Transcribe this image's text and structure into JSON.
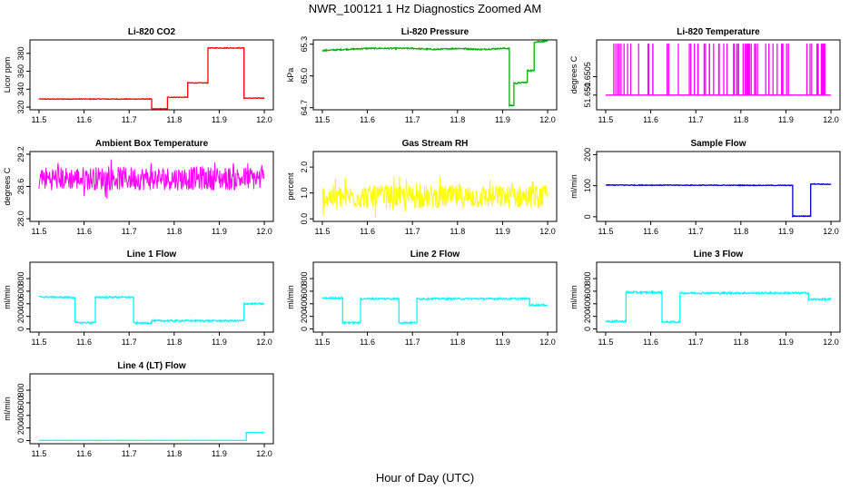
{
  "page": {
    "title": "NWR_100121  1 Hz Diagnostics Zoomed AM",
    "xlabel": "Hour of Day (UTC)"
  },
  "chart_data": [
    {
      "type": "line",
      "title": "Li-820 CO2",
      "ylabel": "Licor ppm",
      "color": "#ff0000",
      "xlim": [
        11.48,
        12.02
      ],
      "ylim": [
        317,
        395
      ],
      "x_ticks": [
        "11.5",
        "11.6",
        "11.7",
        "11.8",
        "11.9",
        "12.0"
      ],
      "y_ticks": [
        "320",
        "340",
        "360",
        "380"
      ],
      "style": "step",
      "noise": 0.4,
      "points": [
        [
          11.5,
          329
        ],
        [
          11.75,
          329
        ],
        [
          11.75,
          318
        ],
        [
          11.785,
          318
        ],
        [
          11.785,
          331
        ],
        [
          11.83,
          331
        ],
        [
          11.83,
          347
        ],
        [
          11.875,
          347
        ],
        [
          11.875,
          386
        ],
        [
          11.955,
          386
        ],
        [
          11.955,
          330
        ],
        [
          12.0,
          330
        ]
      ]
    },
    {
      "type": "line",
      "title": "Li-820 Pressure",
      "ylabel": "kPa",
      "color": "#00b000",
      "xlim": [
        11.48,
        12.02
      ],
      "ylim": [
        64.68,
        65.34
      ],
      "x_ticks": [
        "11.5",
        "11.6",
        "11.7",
        "11.8",
        "11.9",
        "12.0"
      ],
      "y_ticks": [
        "64.7",
        "65.0",
        "65.3"
      ],
      "style": "step",
      "noise": 0.006,
      "points": [
        [
          11.5,
          65.24
        ],
        [
          11.55,
          65.25
        ],
        [
          11.6,
          65.26
        ],
        [
          11.65,
          65.26
        ],
        [
          11.7,
          65.26
        ],
        [
          11.75,
          65.25
        ],
        [
          11.8,
          65.26
        ],
        [
          11.85,
          65.25
        ],
        [
          11.9,
          65.26
        ],
        [
          11.915,
          65.26
        ],
        [
          11.915,
          64.72
        ],
        [
          11.925,
          64.72
        ],
        [
          11.925,
          64.93
        ],
        [
          11.955,
          64.94
        ],
        [
          11.955,
          65.05
        ],
        [
          11.97,
          65.05
        ],
        [
          11.97,
          65.32
        ],
        [
          12.0,
          65.33
        ]
      ]
    },
    {
      "type": "line",
      "title": "Li-820 Temperature",
      "ylabel": "degrees C",
      "color": "#ff00ff",
      "xlim": [
        11.48,
        12.02
      ],
      "ylim": [
        51.6496,
        51.6515
      ],
      "x_ticks": [
        "11.5",
        "11.6",
        "11.7",
        "11.8",
        "11.9",
        "12.0"
      ],
      "y_ticks": [
        "51.650",
        "51.6505"
      ],
      "style": "spikes",
      "low": 51.65,
      "high": 51.6514,
      "spikes": 70
    },
    {
      "type": "line",
      "title": "Ambient Box Temperature",
      "ylabel": "degrees C",
      "color": "#ff00ff",
      "xlim": [
        11.48,
        12.02
      ],
      "ylim": [
        27.95,
        29.25
      ],
      "x_ticks": [
        "11.5",
        "11.6",
        "11.7",
        "11.8",
        "11.9",
        "12.0"
      ],
      "y_ticks": [
        "28.0",
        "28.6",
        "29.2"
      ],
      "style": "noise",
      "center": 28.75,
      "amp": 0.22,
      "points": [
        [
          11.5,
          28.75
        ],
        [
          12.0,
          28.75
        ]
      ]
    },
    {
      "type": "line",
      "title": "Gas Stream RH",
      "ylabel": "percent",
      "color": "#ffff00",
      "xlim": [
        11.48,
        12.02
      ],
      "ylim": [
        -0.1,
        2.6
      ],
      "x_ticks": [
        "11.5",
        "11.6",
        "11.7",
        "11.8",
        "11.9",
        "12.0"
      ],
      "y_ticks": [
        "0.0",
        "1.0",
        "2.0"
      ],
      "style": "noise",
      "center": 0.85,
      "amp": 0.45,
      "points": [
        [
          11.5,
          0.85
        ],
        [
          12.0,
          0.85
        ]
      ]
    },
    {
      "type": "line",
      "title": "Sample Flow",
      "ylabel": "ml/min",
      "color": "#0000cc",
      "xlim": [
        11.48,
        12.02
      ],
      "ylim": [
        -15,
        210
      ],
      "x_ticks": [
        "11.5",
        "11.6",
        "11.7",
        "11.8",
        "11.9",
        "12.0"
      ],
      "y_ticks": [
        "0",
        "100",
        "200"
      ],
      "style": "step",
      "noise": 1.2,
      "points": [
        [
          11.5,
          102
        ],
        [
          11.915,
          101
        ],
        [
          11.915,
          2
        ],
        [
          11.955,
          2
        ],
        [
          11.955,
          106
        ],
        [
          12.0,
          104
        ]
      ]
    },
    {
      "type": "line",
      "title": "Line 1 Flow",
      "ylabel": "ml/min",
      "color": "#00ffff",
      "xlim": [
        11.48,
        12.02
      ],
      "ylim": [
        -50,
        1060
      ],
      "x_ticks": [
        "11.5",
        "11.6",
        "11.7",
        "11.8",
        "11.9",
        "12.0"
      ],
      "y_ticks": [
        "0",
        "200",
        "400",
        "600",
        "800"
      ],
      "style": "step",
      "noise": 12,
      "points": [
        [
          11.5,
          510
        ],
        [
          11.58,
          500
        ],
        [
          11.58,
          100
        ],
        [
          11.625,
          100
        ],
        [
          11.625,
          505
        ],
        [
          11.71,
          505
        ],
        [
          11.71,
          95
        ],
        [
          11.75,
          95
        ],
        [
          11.75,
          130
        ],
        [
          11.955,
          130
        ],
        [
          11.955,
          400
        ],
        [
          12.0,
          400
        ]
      ]
    },
    {
      "type": "line",
      "title": "Line 2 Flow",
      "ylabel": "ml/min",
      "color": "#00ffff",
      "xlim": [
        11.48,
        12.02
      ],
      "ylim": [
        -50,
        1060
      ],
      "x_ticks": [
        "11.5",
        "11.6",
        "11.7",
        "11.8",
        "11.9",
        "12.0"
      ],
      "y_ticks": [
        "0",
        "200",
        "400",
        "600",
        "800"
      ],
      "style": "step",
      "noise": 12,
      "points": [
        [
          11.5,
          490
        ],
        [
          11.545,
          490
        ],
        [
          11.545,
          100
        ],
        [
          11.585,
          100
        ],
        [
          11.585,
          480
        ],
        [
          11.67,
          480
        ],
        [
          11.67,
          100
        ],
        [
          11.71,
          100
        ],
        [
          11.71,
          480
        ],
        [
          11.96,
          480
        ],
        [
          11.96,
          380
        ],
        [
          12.0,
          380
        ]
      ]
    },
    {
      "type": "line",
      "title": "Line 3 Flow",
      "ylabel": "ml/min",
      "color": "#00ffff",
      "xlim": [
        11.48,
        12.02
      ],
      "ylim": [
        -50,
        1060
      ],
      "x_ticks": [
        "11.5",
        "11.6",
        "11.7",
        "11.8",
        "11.9",
        "12.0"
      ],
      "y_ticks": [
        "0",
        "200",
        "400",
        "600",
        "800"
      ],
      "style": "step",
      "noise": 14,
      "points": [
        [
          11.5,
          120
        ],
        [
          11.545,
          120
        ],
        [
          11.545,
          580
        ],
        [
          11.625,
          580
        ],
        [
          11.625,
          110
        ],
        [
          11.665,
          110
        ],
        [
          11.665,
          570
        ],
        [
          11.95,
          570
        ],
        [
          11.95,
          470
        ],
        [
          12.0,
          470
        ]
      ]
    },
    {
      "type": "line",
      "title": "Line 4 (LT) Flow",
      "ylabel": "ml/min",
      "color": "#00ffff",
      "xlim": [
        11.48,
        12.02
      ],
      "ylim": [
        -50,
        1060
      ],
      "x_ticks": [
        "11.5",
        "11.6",
        "11.7",
        "11.8",
        "11.9",
        "12.0"
      ],
      "y_ticks": [
        "0",
        "200",
        "400",
        "600",
        "800"
      ],
      "style": "step",
      "noise": 1.5,
      "points": [
        [
          11.5,
          2
        ],
        [
          11.96,
          2
        ],
        [
          11.96,
          130
        ],
        [
          12.0,
          125
        ]
      ]
    }
  ]
}
